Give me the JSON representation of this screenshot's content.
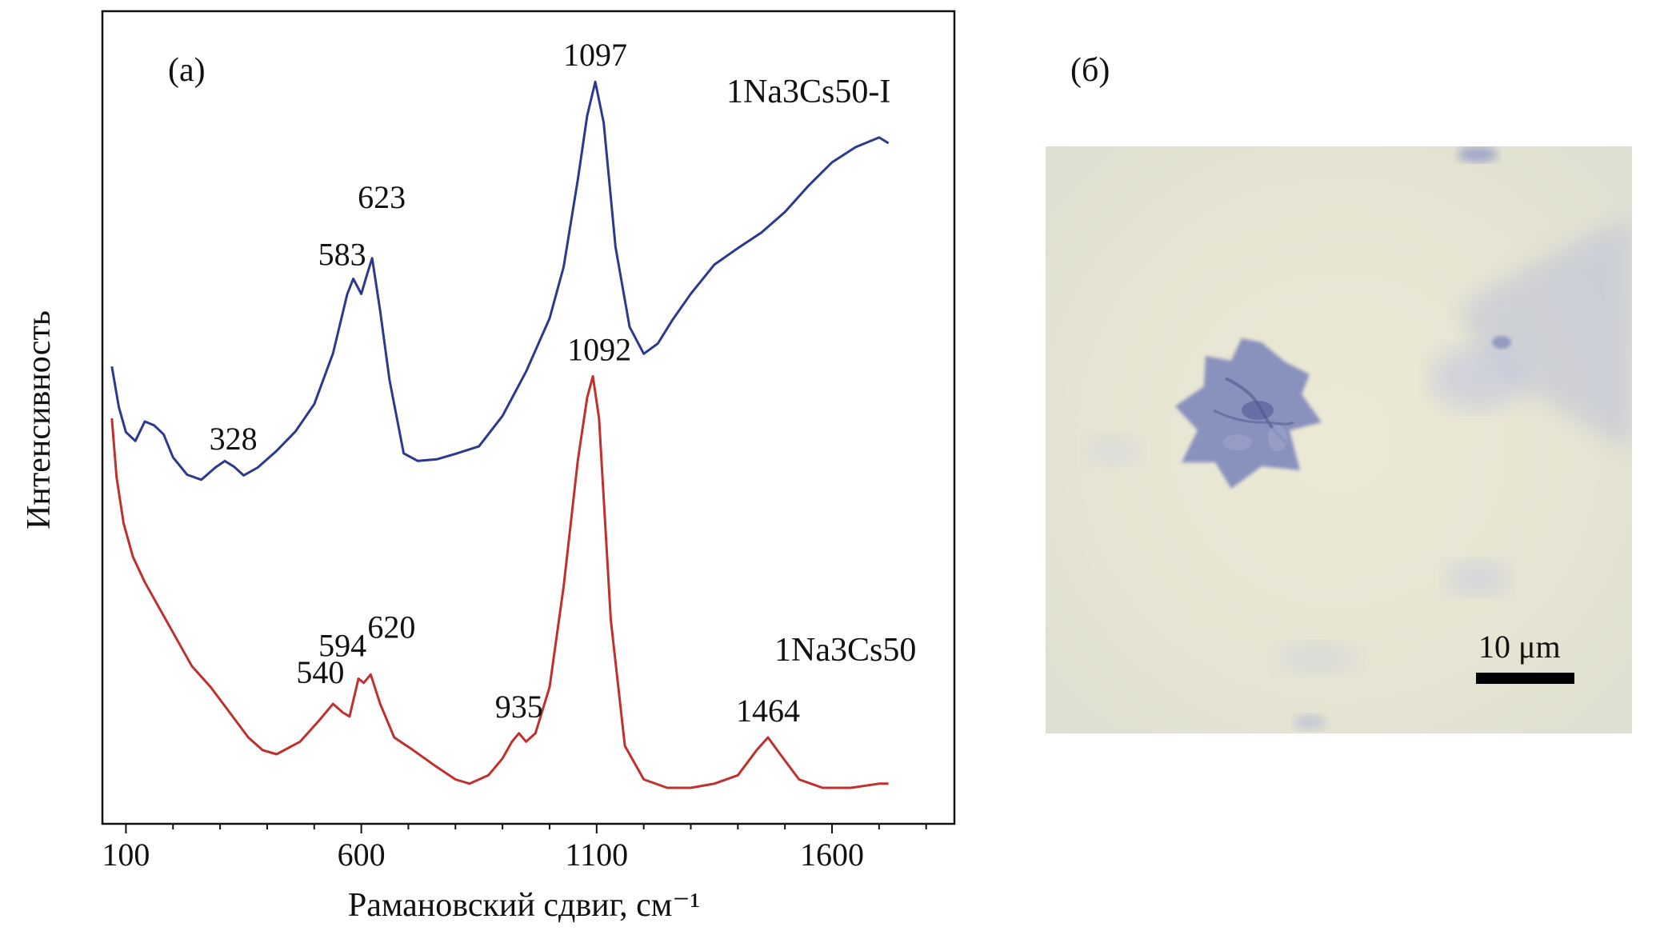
{
  "panel_a_label": "(a)",
  "panel_b_label": "(б)",
  "scale_bar_label": "10 μm",
  "colors": {
    "series_top": "#2b3a8c",
    "series_bottom": "#c0302c",
    "crystal": "#7b86b8",
    "photo_bg": "#e8e6d3"
  },
  "chart_data": {
    "type": "line",
    "xlabel": "Рамановский сдвиг, см⁻¹",
    "ylabel": "Интенсивность",
    "xlim": [
      50,
      1860
    ],
    "xticks": [
      100,
      600,
      1100,
      1600
    ],
    "y_units": "arbitrary (relative intensity, curves offset vertically)",
    "series": [
      {
        "name": "1Na3Cs50-I",
        "color": "#2b3a8c",
        "x": [
          70,
          85,
          100,
          120,
          140,
          160,
          180,
          200,
          230,
          260,
          290,
          310,
          330,
          350,
          380,
          420,
          460,
          500,
          540,
          570,
          583,
          600,
          612,
          623,
          640,
          660,
          690,
          720,
          760,
          800,
          850,
          900,
          950,
          1000,
          1030,
          1060,
          1080,
          1097,
          1115,
          1140,
          1170,
          1200,
          1230,
          1260,
          1300,
          1350,
          1400,
          1450,
          1500,
          1550,
          1600,
          1650,
          1700,
          1720
        ],
        "y": [
          42,
          30,
          23,
          21,
          27,
          26,
          23,
          16,
          11,
          10,
          14,
          16,
          14,
          11,
          13,
          18,
          24,
          32,
          46,
          62,
          66,
          62,
          68,
          73,
          58,
          38,
          17,
          15,
          16,
          18,
          20,
          28,
          40,
          55,
          70,
          95,
          113,
          122,
          110,
          75,
          53,
          46,
          49,
          55,
          62,
          70,
          75,
          80,
          86,
          93,
          99,
          103,
          106,
          105
        ]
      },
      {
        "name": "1Na3Cs50",
        "color": "#c0302c",
        "x": [
          70,
          80,
          95,
          115,
          140,
          170,
          200,
          240,
          280,
          320,
          360,
          390,
          420,
          470,
          510,
          540,
          560,
          575,
          594,
          605,
          620,
          640,
          670,
          710,
          760,
          800,
          830,
          870,
          900,
          920,
          935,
          950,
          970,
          1000,
          1030,
          1060,
          1080,
          1092,
          1105,
          1130,
          1160,
          1200,
          1250,
          1300,
          1350,
          1400,
          1440,
          1464,
          1490,
          1530,
          1580,
          1640,
          1700,
          1720
        ],
        "y": [
          88,
          74,
          63,
          55,
          49,
          43,
          37,
          29,
          24,
          18,
          12,
          9,
          8,
          11,
          16,
          20,
          18,
          17,
          26,
          25,
          27,
          20,
          12,
          9,
          5,
          2,
          1,
          3,
          7,
          11,
          13,
          11,
          13,
          24,
          48,
          78,
          93,
          98,
          88,
          40,
          10,
          2,
          0,
          0,
          1,
          3,
          9,
          12,
          8,
          2,
          0,
          0,
          1,
          1
        ]
      }
    ],
    "annotations": [
      {
        "text": "1097",
        "x": 1097,
        "series": 0
      },
      {
        "text": "623",
        "x": 623,
        "series": 0
      },
      {
        "text": "583",
        "x": 583,
        "series": 0
      },
      {
        "text": "328",
        "x": 328,
        "series": 0
      },
      {
        "text": "1092",
        "x": 1092,
        "series": 1
      },
      {
        "text": "594",
        "x": 594,
        "series": 1
      },
      {
        "text": "620",
        "x": 620,
        "series": 1
      },
      {
        "text": "540",
        "x": 540,
        "series": 1
      },
      {
        "text": "935",
        "x": 935,
        "series": 1
      },
      {
        "text": "1464",
        "x": 1464,
        "series": 1
      }
    ],
    "legend": [
      {
        "text": "1Na3Cs50-I",
        "placement": "upper right, next to top curve"
      },
      {
        "text": "1Na3Cs50",
        "placement": "lower right, next to bottom curve"
      }
    ],
    "grid": false
  }
}
